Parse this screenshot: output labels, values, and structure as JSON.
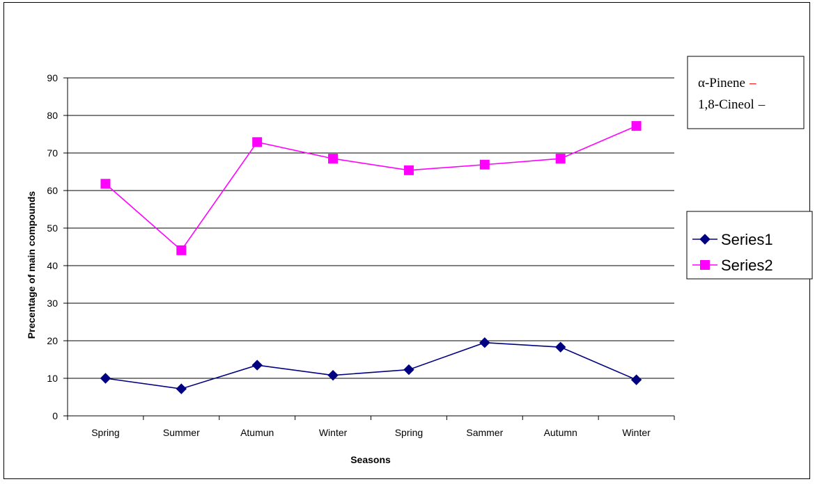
{
  "chart_data": {
    "type": "line",
    "categories": [
      "Spring",
      "Summer",
      "Atumun",
      "Winter",
      "Spring",
      "Sammer",
      "Autumn",
      "Winter"
    ],
    "series": [
      {
        "name": "Series1",
        "values": [
          10,
          7.2,
          13.5,
          10.8,
          12.3,
          19.5,
          18.3,
          9.6
        ],
        "color": "#000080",
        "marker": "diamond"
      },
      {
        "name": "Series2",
        "values": [
          61.8,
          44.1,
          72.9,
          68.5,
          65.4,
          66.9,
          68.5,
          77.2
        ],
        "color": "#FF00FF",
        "marker": "square"
      }
    ],
    "title": "",
    "xlabel": "Seasons",
    "ylabel": "Precentage of main compounds",
    "ylim": [
      0,
      90
    ],
    "yticks": [
      "0",
      "10",
      "20",
      "30",
      "40",
      "50",
      "60",
      "70",
      "80",
      "90"
    ],
    "grid": true,
    "legend": "right"
  },
  "note": {
    "line1_label": "α-Pinene",
    "line1_dash": "–",
    "line1_color": "#FF0000",
    "line2_label": "1,8-Cineol",
    "line2_dash": "–",
    "line2_color": "#000080"
  }
}
